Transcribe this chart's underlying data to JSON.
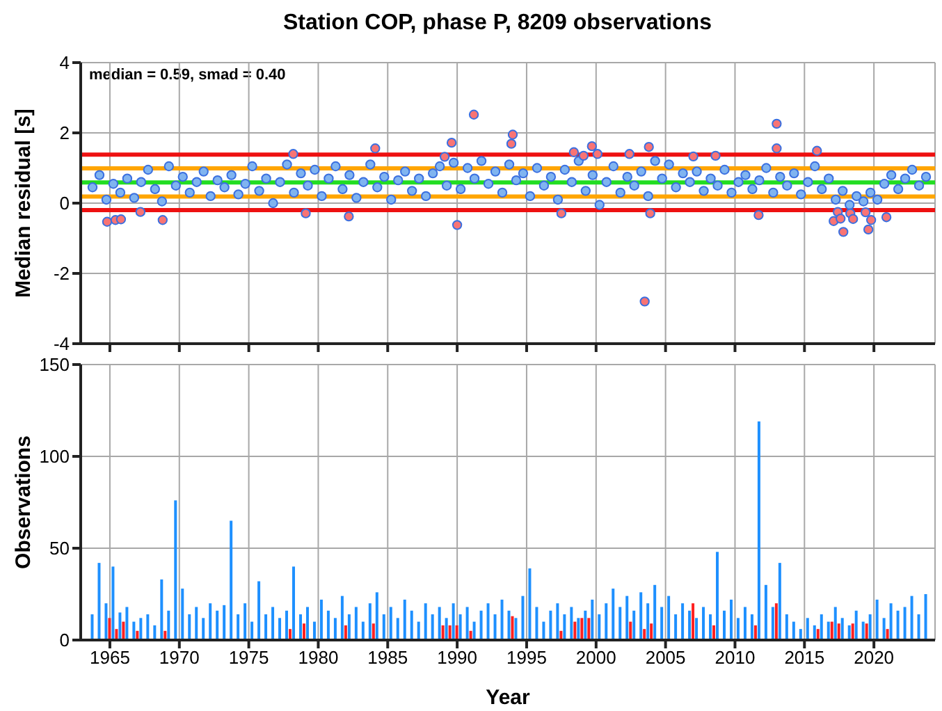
{
  "chart_data": [
    {
      "type": "scatter",
      "title": "Station COP, phase P, 8209 observations",
      "ylabel": "Median residual [s]",
      "annotations": [
        "median = 0.59, smad = 0.40"
      ],
      "xlim": [
        1962.9,
        2024.4
      ],
      "xticks": [
        1965,
        1970,
        1975,
        1980,
        1985,
        1990,
        1995,
        2000,
        2005,
        2010,
        2015,
        2020
      ],
      "ylim": [
        -4,
        4
      ],
      "yticks": [
        -4,
        -2,
        0,
        2,
        4
      ],
      "tick_labels": "y",
      "grid": true,
      "marker": "circle",
      "ref_lines": [
        {
          "axis": "y",
          "value": -0.2,
          "color": "#ee1111"
        },
        {
          "axis": "y",
          "value": 1.38,
          "color": "#ee1111"
        },
        {
          "axis": "y",
          "value": 0.19,
          "color": "#ffa500"
        },
        {
          "axis": "y",
          "value": 0.99,
          "color": "#ffa500"
        },
        {
          "axis": "y",
          "value": 0.59,
          "color": "#22dd22"
        }
      ],
      "series": [
        {
          "color": "#80b4f0",
          "x": [
            1963.75,
            1964.25,
            1964.75,
            1965.25,
            1965.75,
            1966.25,
            1966.75,
            1967.25,
            1967.75,
            1968.25,
            1968.75,
            1969.25,
            1969.75,
            1970.25,
            1970.75,
            1971.25,
            1971.75,
            1972.25,
            1972.75,
            1973.25,
            1973.75,
            1974.25,
            1974.75,
            1975.25,
            1975.75,
            1976.25,
            1976.75,
            1977.25,
            1977.75,
            1978.25,
            1978.75,
            1979.25,
            1979.75,
            1980.25,
            1980.75,
            1981.25,
            1981.75,
            1982.25,
            1982.75,
            1983.25,
            1983.75,
            1984.25,
            1984.75,
            1985.25,
            1985.75,
            1986.25,
            1986.75,
            1987.25,
            1987.75,
            1988.25,
            1988.75,
            1989.25,
            1989.75,
            1990.25,
            1990.75,
            1991.25,
            1991.75,
            1992.25,
            1992.75,
            1993.25,
            1993.75,
            1994.25,
            1994.75,
            1995.25,
            1995.75,
            1996.25,
            1996.75,
            1997.25,
            1997.75,
            1998.25,
            1998.75,
            1999.25,
            1999.75,
            2000.25,
            2000.75,
            2001.25,
            2001.75,
            2002.25,
            2002.75,
            2003.25,
            2003.75,
            2004.25,
            2004.75,
            2005.25,
            2005.75,
            2006.25,
            2006.75,
            2007.25,
            2007.75,
            2008.25,
            2008.75,
            2009.25,
            2009.75,
            2010.25,
            2010.75,
            2011.25,
            2011.75,
            2012.25,
            2012.75,
            2013.25,
            2013.75,
            2014.25,
            2014.75,
            2015.25,
            2015.75,
            2016.25,
            2016.75,
            2017.25,
            2017.75,
            2018.25,
            2018.75,
            2019.25,
            2019.75,
            2020.25,
            2020.75,
            2021.25,
            2021.75,
            2022.25,
            2022.75,
            2023.25,
            2023.75
          ],
          "values": [
            0.45,
            0.8,
            0.1,
            0.55,
            0.3,
            0.7,
            0.15,
            0.6,
            0.95,
            0.4,
            0.05,
            1.05,
            0.5,
            0.75,
            0.3,
            0.6,
            0.9,
            0.2,
            0.65,
            0.45,
            0.8,
            0.25,
            0.55,
            1.05,
            0.35,
            0.7,
            0.0,
            0.6,
            1.1,
            0.3,
            0.85,
            0.5,
            0.95,
            0.2,
            0.7,
            1.05,
            0.4,
            0.8,
            0.15,
            0.6,
            1.1,
            0.45,
            0.75,
            0.1,
            0.65,
            0.9,
            0.35,
            0.7,
            0.2,
            0.85,
            1.05,
            0.5,
            1.15,
            0.4,
            1.0,
            0.7,
            1.2,
            0.55,
            0.9,
            0.3,
            1.1,
            0.65,
            0.85,
            0.2,
            1.0,
            0.5,
            0.75,
            0.1,
            0.95,
            0.6,
            1.2,
            0.35,
            0.8,
            -0.05,
            0.6,
            1.05,
            0.3,
            0.75,
            0.5,
            0.9,
            0.2,
            1.2,
            0.7,
            1.1,
            0.45,
            0.85,
            0.6,
            0.9,
            0.35,
            0.7,
            0.5,
            0.95,
            0.3,
            0.6,
            0.8,
            0.4,
            0.65,
            1.0,
            0.3,
            0.75,
            0.5,
            0.85,
            0.25,
            0.6,
            1.05,
            0.4,
            0.7,
            0.1,
            0.35,
            -0.05,
            0.2,
            0.05,
            0.3,
            0.1,
            0.55,
            0.8,
            0.4,
            0.7,
            0.95,
            0.5,
            0.75
          ]
        },
        {
          "color": "#f87474",
          "x": [
            1964.8,
            1965.4,
            1965.8,
            1967.2,
            1968.8,
            1978.2,
            1979.1,
            1982.2,
            1984.1,
            1989.1,
            1989.6,
            1990.0,
            1991.2,
            1993.9,
            1994.0,
            1997.5,
            1998.4,
            1999.1,
            1999.7,
            2000.1,
            2002.4,
            2003.5,
            2003.8,
            2003.9,
            2007.0,
            2008.6,
            2011.7,
            2013.0,
            2013.0,
            2015.9,
            2017.1,
            2017.4,
            2017.6,
            2017.8,
            2018.3,
            2018.5,
            2019.4,
            2019.6,
            2019.8,
            2020.9
          ],
          "values": [
            -0.53,
            -0.48,
            -0.46,
            -0.25,
            -0.48,
            1.4,
            -0.29,
            -0.38,
            1.56,
            1.32,
            1.72,
            -0.62,
            2.52,
            1.69,
            1.95,
            -0.29,
            1.45,
            1.35,
            1.62,
            1.4,
            1.4,
            -2.8,
            1.6,
            -0.29,
            1.33,
            1.35,
            -0.34,
            2.26,
            1.56,
            1.49,
            -0.51,
            -0.25,
            -0.44,
            -0.82,
            -0.29,
            -0.45,
            -0.26,
            -0.75,
            -0.48,
            -0.4
          ]
        }
      ]
    },
    {
      "type": "bar",
      "ylabel": "Observations",
      "xlabel": "Year",
      "xlim": [
        1962.9,
        2024.4
      ],
      "xticks": [
        1965,
        1970,
        1975,
        1980,
        1985,
        1990,
        1995,
        2000,
        2005,
        2010,
        2015,
        2020
      ],
      "ylim": [
        0,
        150
      ],
      "yticks": [
        0,
        50,
        100,
        150
      ],
      "grid": true,
      "series": [
        {
          "color": "#1e90ff",
          "x": [
            1963.75,
            1964.25,
            1964.75,
            1965.25,
            1965.75,
            1966.25,
            1966.75,
            1967.25,
            1967.75,
            1968.25,
            1968.75,
            1969.25,
            1969.75,
            1970.25,
            1970.75,
            1971.25,
            1971.75,
            1972.25,
            1972.75,
            1973.25,
            1973.75,
            1974.25,
            1974.75,
            1975.25,
            1975.75,
            1976.25,
            1976.75,
            1977.25,
            1977.75,
            1978.25,
            1978.75,
            1979.25,
            1979.75,
            1980.25,
            1980.75,
            1981.25,
            1981.75,
            1982.25,
            1982.75,
            1983.25,
            1983.75,
            1984.25,
            1984.75,
            1985.25,
            1985.75,
            1986.25,
            1986.75,
            1987.25,
            1987.75,
            1988.25,
            1988.75,
            1989.25,
            1989.75,
            1990.25,
            1990.75,
            1991.25,
            1991.75,
            1992.25,
            1992.75,
            1993.25,
            1993.75,
            1994.25,
            1994.75,
            1995.25,
            1995.75,
            1996.25,
            1996.75,
            1997.25,
            1997.75,
            1998.25,
            1998.75,
            1999.25,
            1999.75,
            2000.25,
            2000.75,
            2001.25,
            2001.75,
            2002.25,
            2002.75,
            2003.25,
            2003.75,
            2004.25,
            2004.75,
            2005.25,
            2005.75,
            2006.25,
            2006.75,
            2007.25,
            2007.75,
            2008.25,
            2008.75,
            2009.25,
            2009.75,
            2010.25,
            2010.75,
            2011.25,
            2011.75,
            2012.25,
            2012.75,
            2013.25,
            2013.75,
            2014.25,
            2014.75,
            2015.25,
            2015.75,
            2016.25,
            2016.75,
            2017.25,
            2017.75,
            2018.25,
            2018.75,
            2019.25,
            2019.75,
            2020.25,
            2020.75,
            2021.25,
            2021.75,
            2022.25,
            2022.75,
            2023.25,
            2023.75
          ],
          "values": [
            14,
            42,
            20,
            40,
            15,
            18,
            10,
            12,
            14,
            8,
            33,
            16,
            76,
            28,
            14,
            18,
            12,
            20,
            16,
            19,
            65,
            14,
            20,
            10,
            32,
            14,
            18,
            12,
            16,
            40,
            14,
            18,
            10,
            22,
            16,
            12,
            24,
            14,
            18,
            10,
            20,
            26,
            14,
            18,
            12,
            22,
            16,
            10,
            20,
            14,
            18,
            12,
            20,
            14,
            18,
            10,
            16,
            20,
            14,
            22,
            16,
            12,
            24,
            39,
            18,
            10,
            16,
            20,
            14,
            18,
            12,
            16,
            22,
            14,
            20,
            28,
            18,
            24,
            16,
            26,
            20,
            30,
            18,
            24,
            14,
            20,
            16,
            12,
            18,
            14,
            48,
            16,
            22,
            12,
            18,
            14,
            119,
            30,
            18,
            42,
            14,
            10,
            6,
            12,
            8,
            14,
            10,
            18,
            12,
            8,
            16,
            10,
            14,
            22,
            12,
            20,
            16,
            18,
            24,
            14,
            25
          ]
        },
        {
          "color": "#ff2020",
          "x": [
            1965.0,
            1965.5,
            1966.0,
            1967.0,
            1969.0,
            1978.0,
            1979.0,
            1982.0,
            1984.0,
            1989.0,
            1989.5,
            1990.0,
            1991.0,
            1994.0,
            1997.5,
            1998.5,
            1999.0,
            1999.5,
            2002.5,
            2003.5,
            2004.0,
            2007.0,
            2008.5,
            2011.5,
            2013.0,
            2016.0,
            2017.0,
            2017.5,
            2018.5,
            2019.5,
            2021.0
          ],
          "values": [
            12,
            6,
            10,
            5,
            5,
            6,
            9,
            8,
            9,
            8,
            8,
            8,
            5,
            13,
            5,
            10,
            12,
            12,
            10,
            6,
            9,
            20,
            8,
            8,
            20,
            6,
            10,
            9,
            9,
            9,
            6
          ]
        }
      ]
    }
  ]
}
